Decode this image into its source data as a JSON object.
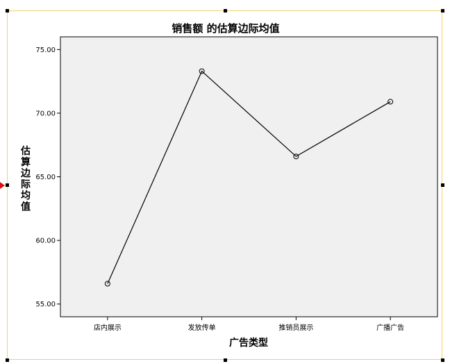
{
  "chart_data": {
    "type": "line",
    "title": "销售额 的估算边际均值",
    "xlabel": "广告类型",
    "ylabel": "估算边际均值",
    "categories": [
      "店内展示",
      "发放传单",
      "推销员展示",
      "广播广告"
    ],
    "values": [
      56.6,
      73.3,
      66.6,
      70.9
    ],
    "ylim": [
      54.0,
      76.0
    ],
    "yticks": [
      55.0,
      60.0,
      65.0,
      70.0,
      75.0
    ],
    "ytick_labels": [
      "55.00",
      "60.00",
      "65.00",
      "70.00",
      "75.00"
    ],
    "grid": false,
    "marker": "open-circle",
    "colors": {
      "plot_background": "#f0f0f0",
      "line": "#000000",
      "frame_border": "#f0d070",
      "marker_arrow": "#dd1111"
    }
  }
}
